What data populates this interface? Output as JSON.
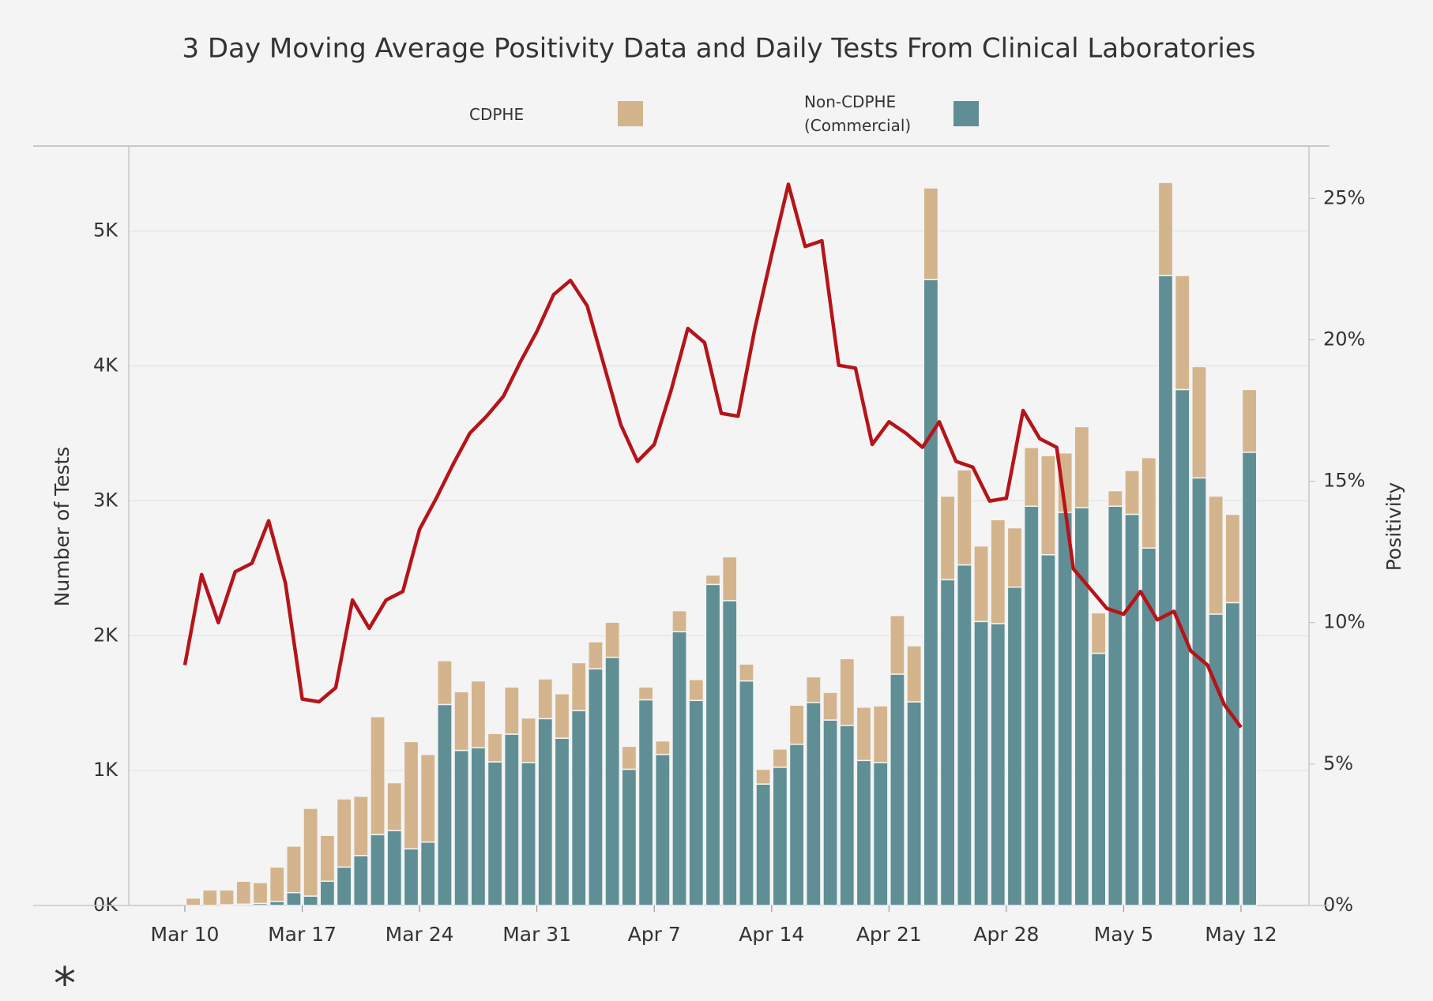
{
  "chart_data": {
    "type": "bar",
    "title": "3 Day Moving Average Positivity Data and Daily Tests From Clinical Laboratories",
    "ylabel": "Number of Tests",
    "y2label": "Positivity",
    "footnote": "*",
    "stacked": true,
    "categories": [
      "Mar 10",
      null,
      null,
      null,
      null,
      null,
      null,
      "Mar 17",
      null,
      null,
      null,
      null,
      null,
      null,
      "Mar 24",
      null,
      null,
      null,
      null,
      null,
      null,
      "Mar 31",
      null,
      null,
      null,
      null,
      null,
      null,
      "Apr 7",
      null,
      null,
      null,
      null,
      null,
      null,
      "Apr 14",
      null,
      null,
      null,
      null,
      null,
      null,
      "Apr 21",
      null,
      null,
      null,
      null,
      null,
      null,
      "Apr 28",
      null,
      null,
      null,
      null,
      null,
      null,
      "May 5",
      null,
      null,
      null,
      null,
      null,
      null,
      "May 12"
    ],
    "series": [
      {
        "name": "Non-CDPHE (Commercial)",
        "color": "#5f8f94",
        "values": [
          0,
          0,
          5,
          10,
          15,
          30,
          95,
          70,
          180,
          285,
          370,
          525,
          555,
          420,
          470,
          1490,
          1150,
          1170,
          1065,
          1270,
          1060,
          1385,
          1240,
          1445,
          1755,
          1840,
          1010,
          1525,
          1120,
          2030,
          1520,
          2380,
          2260,
          1665,
          900,
          1025,
          1195,
          1505,
          1375,
          1335,
          1075,
          1060,
          1715,
          1510,
          4640,
          2415,
          2525,
          2105,
          2090,
          2360,
          2960,
          2600,
          2915,
          2950,
          1870,
          2960,
          2900,
          2650,
          4670,
          3825,
          3170,
          2160,
          2245,
          3360
        ]
      },
      {
        "name": "CDPHE",
        "color": "#d4b48c",
        "values": [
          55,
          115,
          110,
          170,
          155,
          255,
          345,
          650,
          340,
          505,
          440,
          875,
          355,
          795,
          650,
          325,
          435,
          495,
          210,
          350,
          330,
          295,
          330,
          355,
          200,
          260,
          170,
          95,
          100,
          155,
          155,
          70,
          325,
          125,
          110,
          135,
          290,
          190,
          205,
          495,
          395,
          420,
          435,
          415,
          680,
          620,
          705,
          560,
          770,
          440,
          435,
          735,
          440,
          600,
          300,
          115,
          325,
          670,
          690,
          845,
          825,
          875,
          655,
          465
        ]
      },
      {
        "type": "line",
        "axis": "y2",
        "color": "#b5141a",
        "values": [
          8.5,
          11.7,
          10.0,
          11.8,
          12.1,
          13.6,
          11.4,
          7.3,
          7.2,
          7.7,
          10.8,
          9.8,
          10.8,
          11.1,
          13.3,
          14.4,
          15.6,
          16.7,
          17.3,
          18.0,
          19.2,
          20.3,
          21.6,
          22.1,
          21.2,
          19.1,
          17.0,
          15.7,
          16.3,
          18.2,
          20.4,
          19.9,
          17.4,
          17.3,
          20.4,
          23.0,
          25.5,
          23.3,
          23.5,
          19.1,
          19.0,
          16.3,
          17.1,
          16.7,
          16.2,
          17.1,
          15.7,
          15.5,
          14.3,
          14.4,
          17.5,
          16.5,
          16.2,
          11.9,
          11.2,
          10.5,
          10.3,
          11.1,
          10.1,
          10.4,
          9.0,
          8.5,
          7.1,
          6.3
        ]
      }
    ],
    "legend_order": [
      1,
      0
    ],
    "ylim": [
      0,
      5630
    ],
    "yticks": [
      {
        "value": 0,
        "label": "0K"
      },
      {
        "value": 1000,
        "label": "1K"
      },
      {
        "value": 2000,
        "label": "2K"
      },
      {
        "value": 3000,
        "label": "3K"
      },
      {
        "value": 4000,
        "label": "4K"
      },
      {
        "value": 5000,
        "label": "5K"
      }
    ],
    "y2lim": [
      0,
      26.85
    ],
    "y2ticks": [
      {
        "value": 0,
        "label": "0%"
      },
      {
        "value": 5,
        "label": "5%"
      },
      {
        "value": 10,
        "label": "10%"
      },
      {
        "value": 15,
        "label": "15%"
      },
      {
        "value": 20,
        "label": "20%"
      },
      {
        "value": 25,
        "label": "25%"
      }
    ],
    "grid": true
  }
}
